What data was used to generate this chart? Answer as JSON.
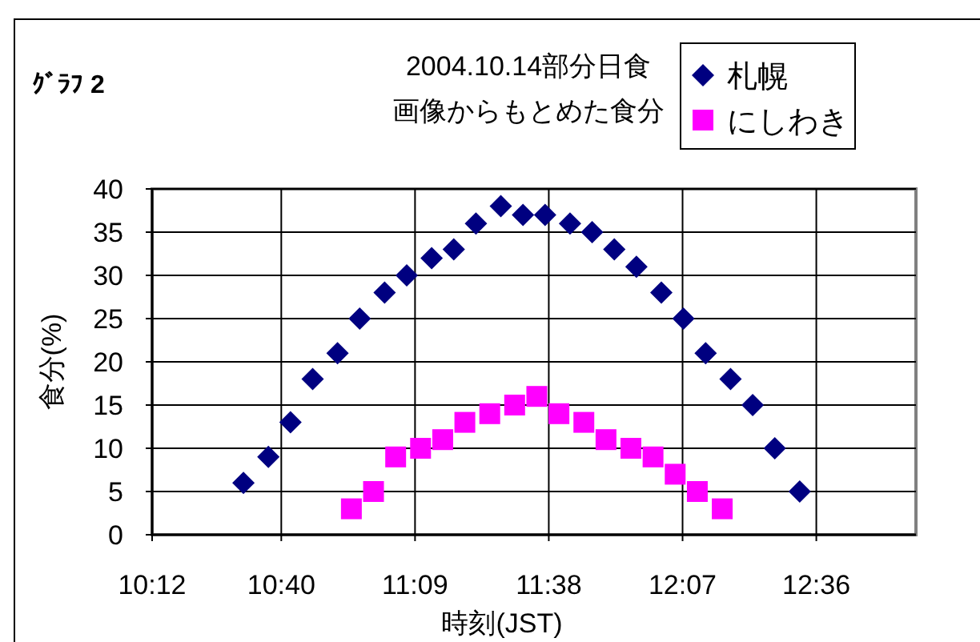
{
  "chart_data": {
    "type": "scatter",
    "title": "2004.10.14部分日食",
    "subtitle": "画像からもとめた食分",
    "annotations": [
      "ｸﾞﾗﾌ 2"
    ],
    "xlabel": "時刻(JST)",
    "ylabel": "食分(%)",
    "xlim": [
      10.2,
      12.96
    ],
    "xticks": [
      {
        "value": 10.2,
        "label": "10:12"
      },
      {
        "value": 10.6667,
        "label": "10:40"
      },
      {
        "value": 11.15,
        "label": "11:09"
      },
      {
        "value": 11.6333,
        "label": "11:38"
      },
      {
        "value": 12.1167,
        "label": "12:07"
      },
      {
        "value": 12.6,
        "label": "12:36"
      }
    ],
    "ylim": [
      0,
      40
    ],
    "yticks": [
      0,
      5,
      10,
      15,
      20,
      25,
      30,
      35,
      40
    ],
    "grid": true,
    "legend": "top right",
    "series": [
      {
        "name": "札幌",
        "color": "#000080",
        "marker": "diamond",
        "x": [
          10.53,
          10.62,
          10.7,
          10.78,
          10.87,
          10.95,
          11.04,
          11.12,
          11.21,
          11.29,
          11.37,
          11.46,
          11.54,
          11.62,
          11.71,
          11.79,
          11.87,
          11.95,
          12.04,
          12.12,
          12.2,
          12.29,
          12.37,
          12.45,
          12.54
        ],
        "values": [
          6,
          9,
          13,
          18,
          21,
          25,
          28,
          30,
          32,
          33,
          36,
          38,
          37,
          37,
          36,
          35,
          33,
          31,
          28,
          25,
          21,
          18,
          15,
          10,
          5
        ]
      },
      {
        "name": "にしわき",
        "color": "#ff00ff",
        "marker": "square",
        "x": [
          10.92,
          11.0,
          11.08,
          11.17,
          11.25,
          11.33,
          11.42,
          11.51,
          11.59,
          11.67,
          11.76,
          11.84,
          11.93,
          12.01,
          12.09,
          12.17,
          12.26
        ],
        "values": [
          3,
          5,
          9,
          10,
          11,
          13,
          14,
          15,
          16,
          14,
          13,
          11,
          10,
          9,
          7,
          5,
          3
        ]
      }
    ]
  }
}
